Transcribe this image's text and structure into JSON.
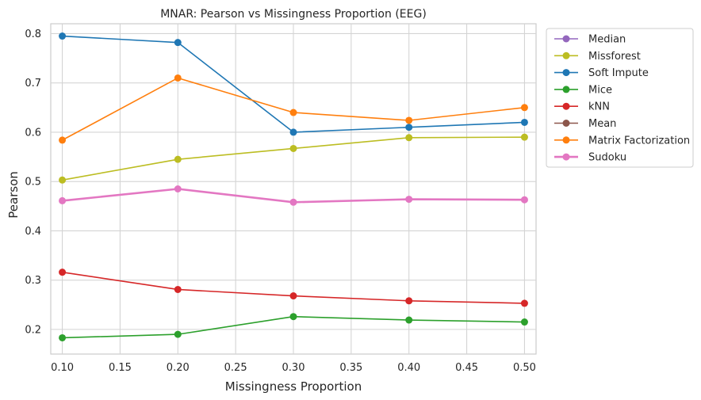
{
  "chart_data": {
    "type": "line",
    "title": "MNAR: Pearson vs Missingness Proportion (EEG)",
    "xlabel": "Missingness Proportion",
    "ylabel": "Pearson",
    "xlim": [
      0.09,
      0.51
    ],
    "ylim": [
      0.15,
      0.82
    ],
    "xticks": [
      "0.10",
      "0.15",
      "0.20",
      "0.25",
      "0.30",
      "0.35",
      "0.40",
      "0.45",
      "0.50"
    ],
    "yticks": [
      "0.2",
      "0.3",
      "0.4",
      "0.5",
      "0.6",
      "0.7",
      "0.8"
    ],
    "grid": true,
    "legend_position": "outside-right-top",
    "x": [
      0.1,
      0.2,
      0.3,
      0.4,
      0.5
    ],
    "series": [
      {
        "name": "Median",
        "color": "#9467bd",
        "values": [
          null,
          null,
          null,
          null,
          null
        ]
      },
      {
        "name": "Missforest",
        "color": "#bcbd22",
        "values": [
          0.503,
          0.545,
          0.567,
          0.589,
          0.59
        ]
      },
      {
        "name": "Soft Impute",
        "color": "#1f77b4",
        "values": [
          0.795,
          0.782,
          0.6,
          0.61,
          0.62
        ]
      },
      {
        "name": "Mice",
        "color": "#2ca02c",
        "values": [
          0.183,
          0.19,
          0.226,
          0.219,
          0.215
        ]
      },
      {
        "name": "kNN",
        "color": "#d62728",
        "values": [
          0.316,
          0.281,
          0.268,
          0.258,
          0.253
        ]
      },
      {
        "name": "Mean",
        "color": "#8c564b",
        "values": [
          null,
          null,
          null,
          null,
          null
        ]
      },
      {
        "name": "Matrix Factorization",
        "color": "#ff7f0e",
        "values": [
          0.584,
          0.71,
          0.64,
          0.624,
          0.65
        ]
      },
      {
        "name": "Sudoku",
        "color": "#e377c2",
        "values": [
          0.461,
          0.485,
          0.458,
          0.464,
          0.463
        ],
        "bold": true
      }
    ]
  }
}
